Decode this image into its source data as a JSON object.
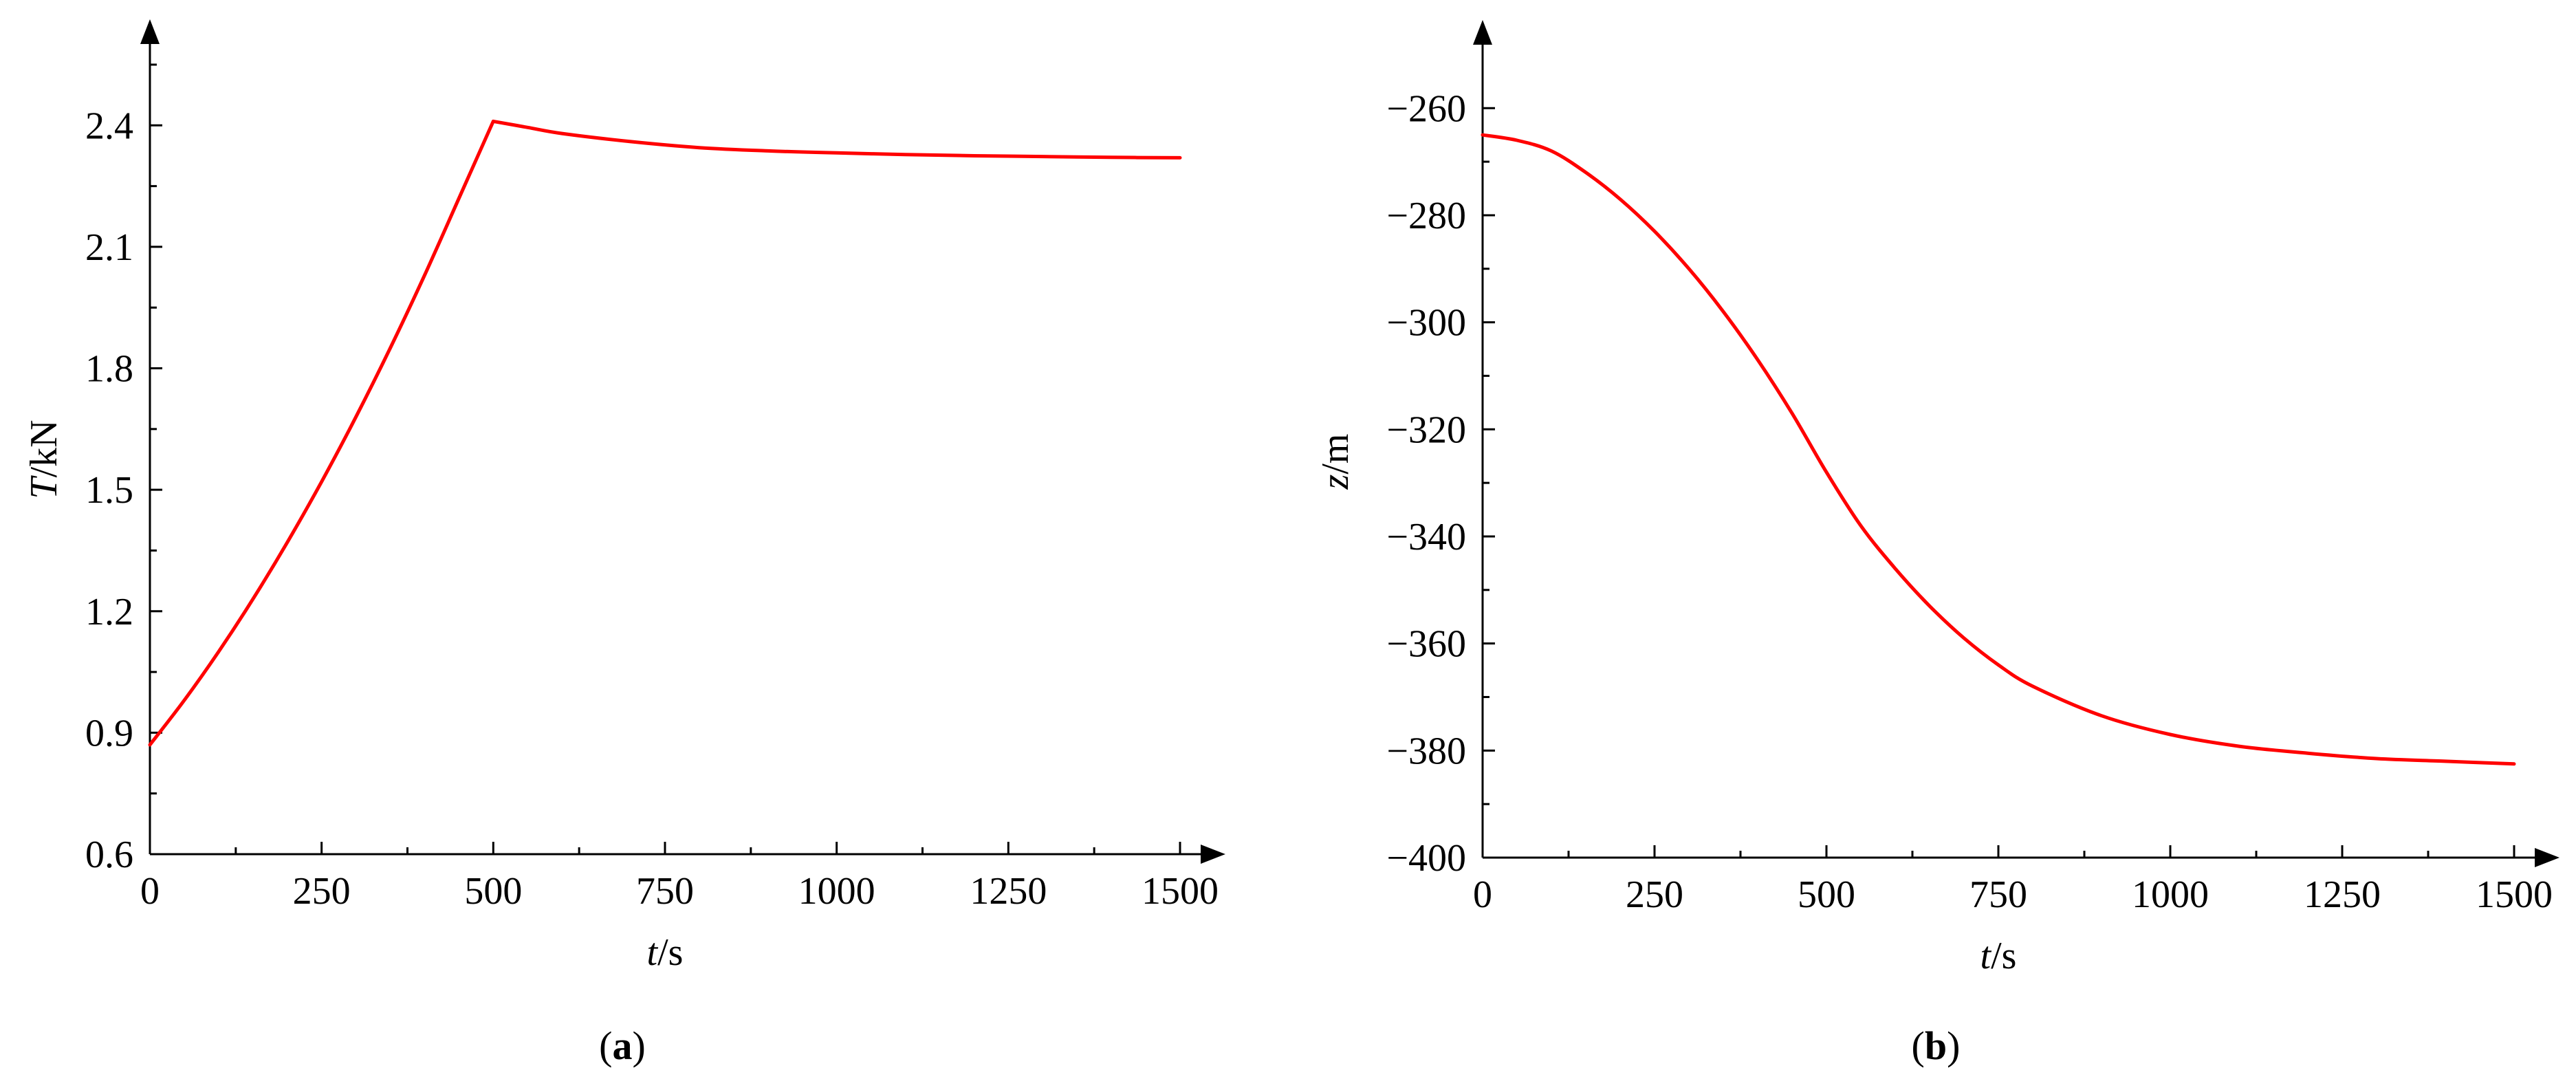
{
  "colors": {
    "series": "#ff0000",
    "axis": "#000000",
    "background": "#ffffff"
  },
  "chart_data": [
    {
      "id": "a",
      "type": "line",
      "panel_label": {
        "open": "(",
        "letter": "a",
        "close": ")"
      },
      "xlabel": {
        "var": "t",
        "unit": "/s"
      },
      "ylabel": {
        "var": "T",
        "unit": "/kN"
      },
      "xlim": [
        0,
        1500
      ],
      "ylim": [
        0.6,
        2.55
      ],
      "xticks": [
        0,
        250,
        500,
        750,
        1000,
        1250,
        1500
      ],
      "xtick_labels": [
        "0",
        "250",
        "500",
        "750",
        "1000",
        "1250",
        "1500"
      ],
      "yticks": [
        0.6,
        0.9,
        1.2,
        1.5,
        1.8,
        2.1,
        2.4
      ],
      "ytick_labels": [
        "0.6",
        "0.9",
        "1.2",
        "1.5",
        "1.8",
        "2.1",
        "2.4"
      ],
      "grid": false,
      "series": [
        {
          "x": [
            0,
            50,
            100,
            150,
            200,
            250,
            300,
            350,
            400,
            450,
            500,
            550,
            600,
            700,
            800,
            900,
            1000,
            1100,
            1200,
            1300,
            1400,
            1500
          ],
          "y": [
            0.87,
            0.98,
            1.1,
            1.23,
            1.37,
            1.52,
            1.68,
            1.85,
            2.03,
            2.22,
            2.41,
            2.395,
            2.38,
            2.36,
            2.345,
            2.337,
            2.332,
            2.328,
            2.325,
            2.323,
            2.321,
            2.32
          ]
        }
      ]
    },
    {
      "id": "b",
      "type": "line",
      "panel_label": {
        "open": "(",
        "letter": "b",
        "close": ")"
      },
      "xlabel": {
        "var": "t",
        "unit": "/s"
      },
      "ylabel": {
        "var": "z",
        "unit": "/m"
      },
      "xlim": [
        0,
        1500
      ],
      "ylim": [
        -400,
        -252
      ],
      "xticks": [
        0,
        250,
        500,
        750,
        1000,
        1250,
        1500
      ],
      "xtick_labels": [
        "0",
        "250",
        "500",
        "750",
        "1000",
        "1250",
        "1500"
      ],
      "yticks": [
        -400,
        -380,
        -360,
        -340,
        -320,
        -300,
        -280,
        -260
      ],
      "ytick_labels": [
        "−400",
        "−380",
        "−360",
        "−340",
        "−320",
        "−300",
        "−280",
        "−260"
      ],
      "grid": false,
      "series": [
        {
          "x": [
            0,
            50,
            100,
            150,
            200,
            250,
            300,
            350,
            400,
            450,
            500,
            550,
            600,
            650,
            700,
            750,
            800,
            900,
            1000,
            1100,
            1200,
            1300,
            1400,
            1500
          ],
          "y": [
            -265,
            -266,
            -268,
            -272,
            -277,
            -283,
            -290,
            -298,
            -307,
            -317,
            -328,
            -338,
            -346,
            -353,
            -359,
            -364,
            -368,
            -373.5,
            -377,
            -379.2,
            -380.5,
            -381.5,
            -382,
            -382.5
          ]
        }
      ]
    }
  ]
}
